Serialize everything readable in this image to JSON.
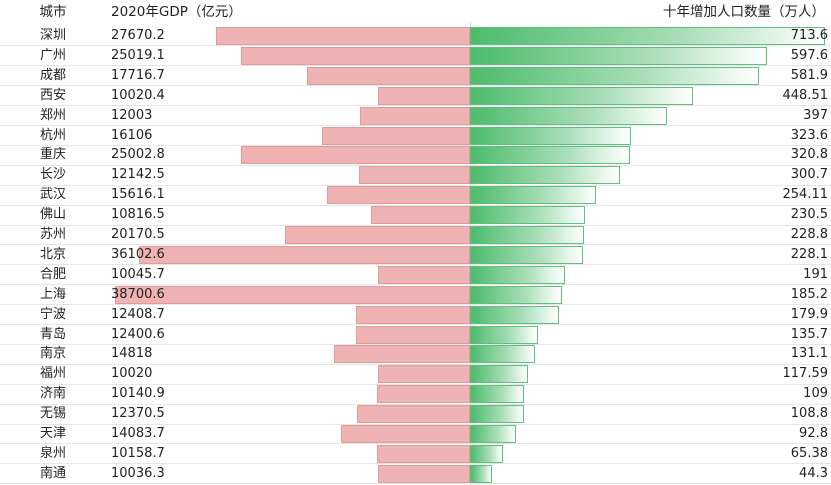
{
  "header": {
    "city": "城市",
    "gdp": "2020年GDP（亿元）",
    "pop": "十年增加人口数量（万人）"
  },
  "chart_data": {
    "type": "bar",
    "categories": [
      "深圳",
      "广州",
      "成都",
      "西安",
      "郑州",
      "杭州",
      "重庆",
      "长沙",
      "武汉",
      "佛山",
      "苏州",
      "北京",
      "合肥",
      "上海",
      "宁波",
      "青岛",
      "南京",
      "福州",
      "济南",
      "无锡",
      "天津",
      "泉州",
      "南通"
    ],
    "series": [
      {
        "name": "2020年GDP（亿元）",
        "values": [
          27670.2,
          25019.1,
          17716.7,
          10020.4,
          12003,
          16106,
          25002.8,
          12142.5,
          15616.1,
          10816.5,
          20170.5,
          36102.6,
          10045.7,
          38700.6,
          12408.7,
          12400.6,
          14818,
          10020,
          10140.9,
          12370.5,
          14083.7,
          10158.7,
          10036.3
        ],
        "labels": [
          "27670.2",
          "25019.1",
          "17716.7",
          "10020.4",
          "12003",
          "16106",
          "25002.8",
          "12142.5",
          "15616.1",
          "10816.5",
          "20170.5",
          "36102.6",
          "10045.7",
          "38700.6",
          "12408.7",
          "12400.6",
          "14818",
          "10020",
          "10140.9",
          "12370.5",
          "14083.7",
          "10158.7",
          "10036.3"
        ]
      },
      {
        "name": "十年增加人口数量（万人）",
        "values": [
          713.6,
          597.6,
          581.9,
          448.51,
          397,
          323.6,
          320.8,
          300.7,
          254.11,
          230.5,
          228.8,
          228.1,
          191,
          185.2,
          179.9,
          135.7,
          131.1,
          117.59,
          109,
          108.8,
          92.8,
          65.38,
          44.3
        ],
        "labels": [
          "713.6",
          "597.6",
          "581.9",
          "448.51",
          "397",
          "323.6",
          "320.8",
          "300.7",
          "254.11",
          "230.5",
          "228.8",
          "228.1",
          "191",
          "185.2",
          "179.9",
          "135.7",
          "131.1",
          "117.59",
          "109",
          "108.8",
          "92.8",
          "65.38",
          "44.3"
        ]
      }
    ],
    "colors": {
      "gdp_bar": "#f0b3b3",
      "pop_bar": "#4cbb6c"
    }
  }
}
